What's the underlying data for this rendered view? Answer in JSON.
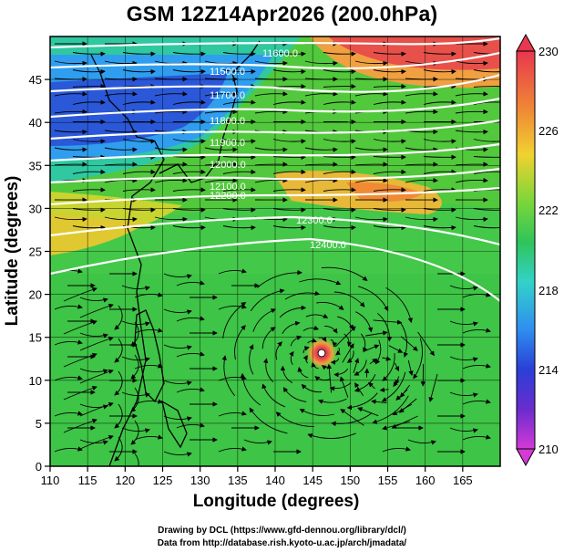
{
  "title": "GSM 12Z14Apr2026 (200.0hPa)",
  "x_axis": {
    "label": "Longitude (degrees)",
    "ticks": [
      "110",
      "115",
      "120",
      "125",
      "130",
      "135",
      "140",
      "145",
      "150",
      "155",
      "160",
      "165"
    ]
  },
  "y_axis": {
    "label": "Latitude (degrees)",
    "ticks": [
      "0",
      "5",
      "10",
      "15",
      "20",
      "25",
      "30",
      "35",
      "40",
      "45"
    ]
  },
  "colorbar": {
    "labels": [
      "230",
      "226",
      "222",
      "218",
      "214",
      "210"
    ],
    "colors": [
      "#e8374e",
      "#f08a35",
      "#f0d230",
      "#7ad63a",
      "#2fc45a",
      "#33d2c8",
      "#2f8ef0",
      "#2a3fd6",
      "#6a2ccf",
      "#d33ad6"
    ]
  },
  "contours": [
    {
      "label": "11600.0"
    },
    {
      "label": "11500.0"
    },
    {
      "label": "11700.0"
    },
    {
      "label": "11800.0"
    },
    {
      "label": "11900.0"
    },
    {
      "label": "12000.0"
    },
    {
      "label": "12100.0"
    },
    {
      "label": "12200.0"
    },
    {
      "label": "12300.0"
    },
    {
      "label": "12400.0"
    }
  ],
  "credits": {
    "line1": "Drawing by DCL (https://www.gfd-dennou.org/library/dcl/)",
    "line2": "Data from http://database.rish.kyoto-u.ac.jp/arch/jmadata/"
  }
}
